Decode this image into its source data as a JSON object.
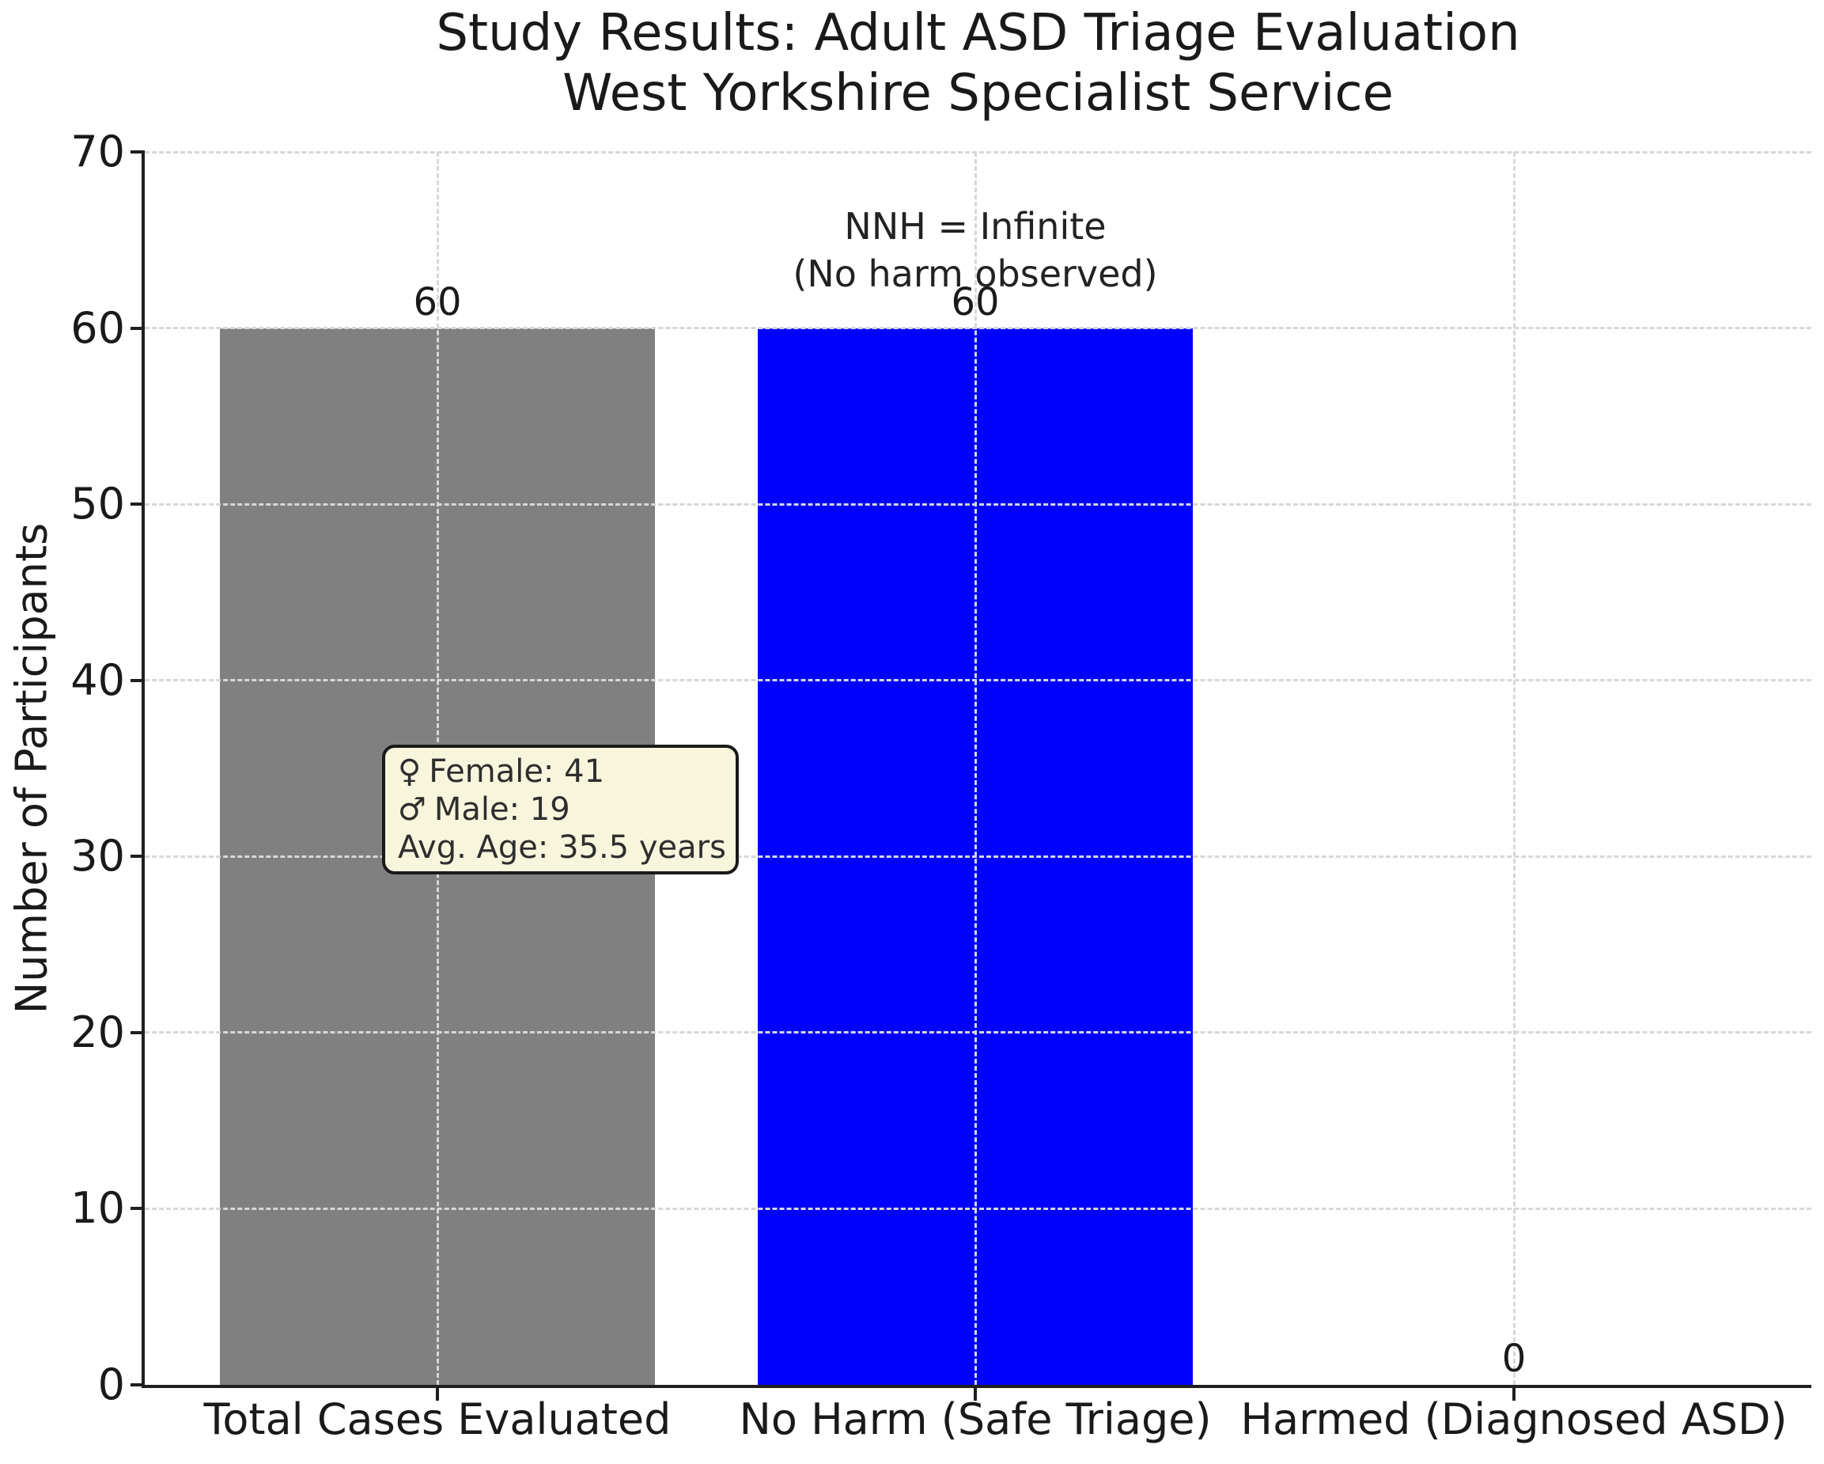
{
  "chart_data": {
    "type": "bar",
    "title_lines": [
      "Study Results: Adult ASD Triage Evaluation",
      "West Yorkshire Specialist Service"
    ],
    "ylabel": "Number of Participants",
    "xlabel": "",
    "categories": [
      "Total Cases Evaluated",
      "No Harm (Safe Triage)",
      "Harmed (Diagnosed ASD)"
    ],
    "values": [
      60,
      60,
      0
    ],
    "value_labels": [
      "60",
      "60",
      "0"
    ],
    "bar_colors": [
      "#808080",
      "#0000ff",
      "#808080"
    ],
    "ylim": [
      0,
      70
    ],
    "yticks": [
      0,
      10,
      20,
      30,
      40,
      50,
      60,
      70
    ],
    "grid": "dashed, light gray, horizontal and vertical",
    "legend": false,
    "annotation": [
      "NNH = Infinite",
      "(No harm observed)"
    ],
    "tooltip": {
      "female_icon": "♀",
      "female_label": "Female: 41",
      "male_icon": "♂",
      "male_label": "Male: 19",
      "avg_age_label": "Avg. Age: 35.5 years"
    }
  },
  "colors": {
    "bar_gray": "#808080",
    "bar_blue": "#0000ff",
    "grid": "#d7d7d7",
    "axis": "#1f1f1f",
    "tooltip_bg": "#f7f5dc",
    "tooltip_border": "#1a1a1a",
    "text": "#1a1a1a",
    "background": "#ffffff"
  }
}
